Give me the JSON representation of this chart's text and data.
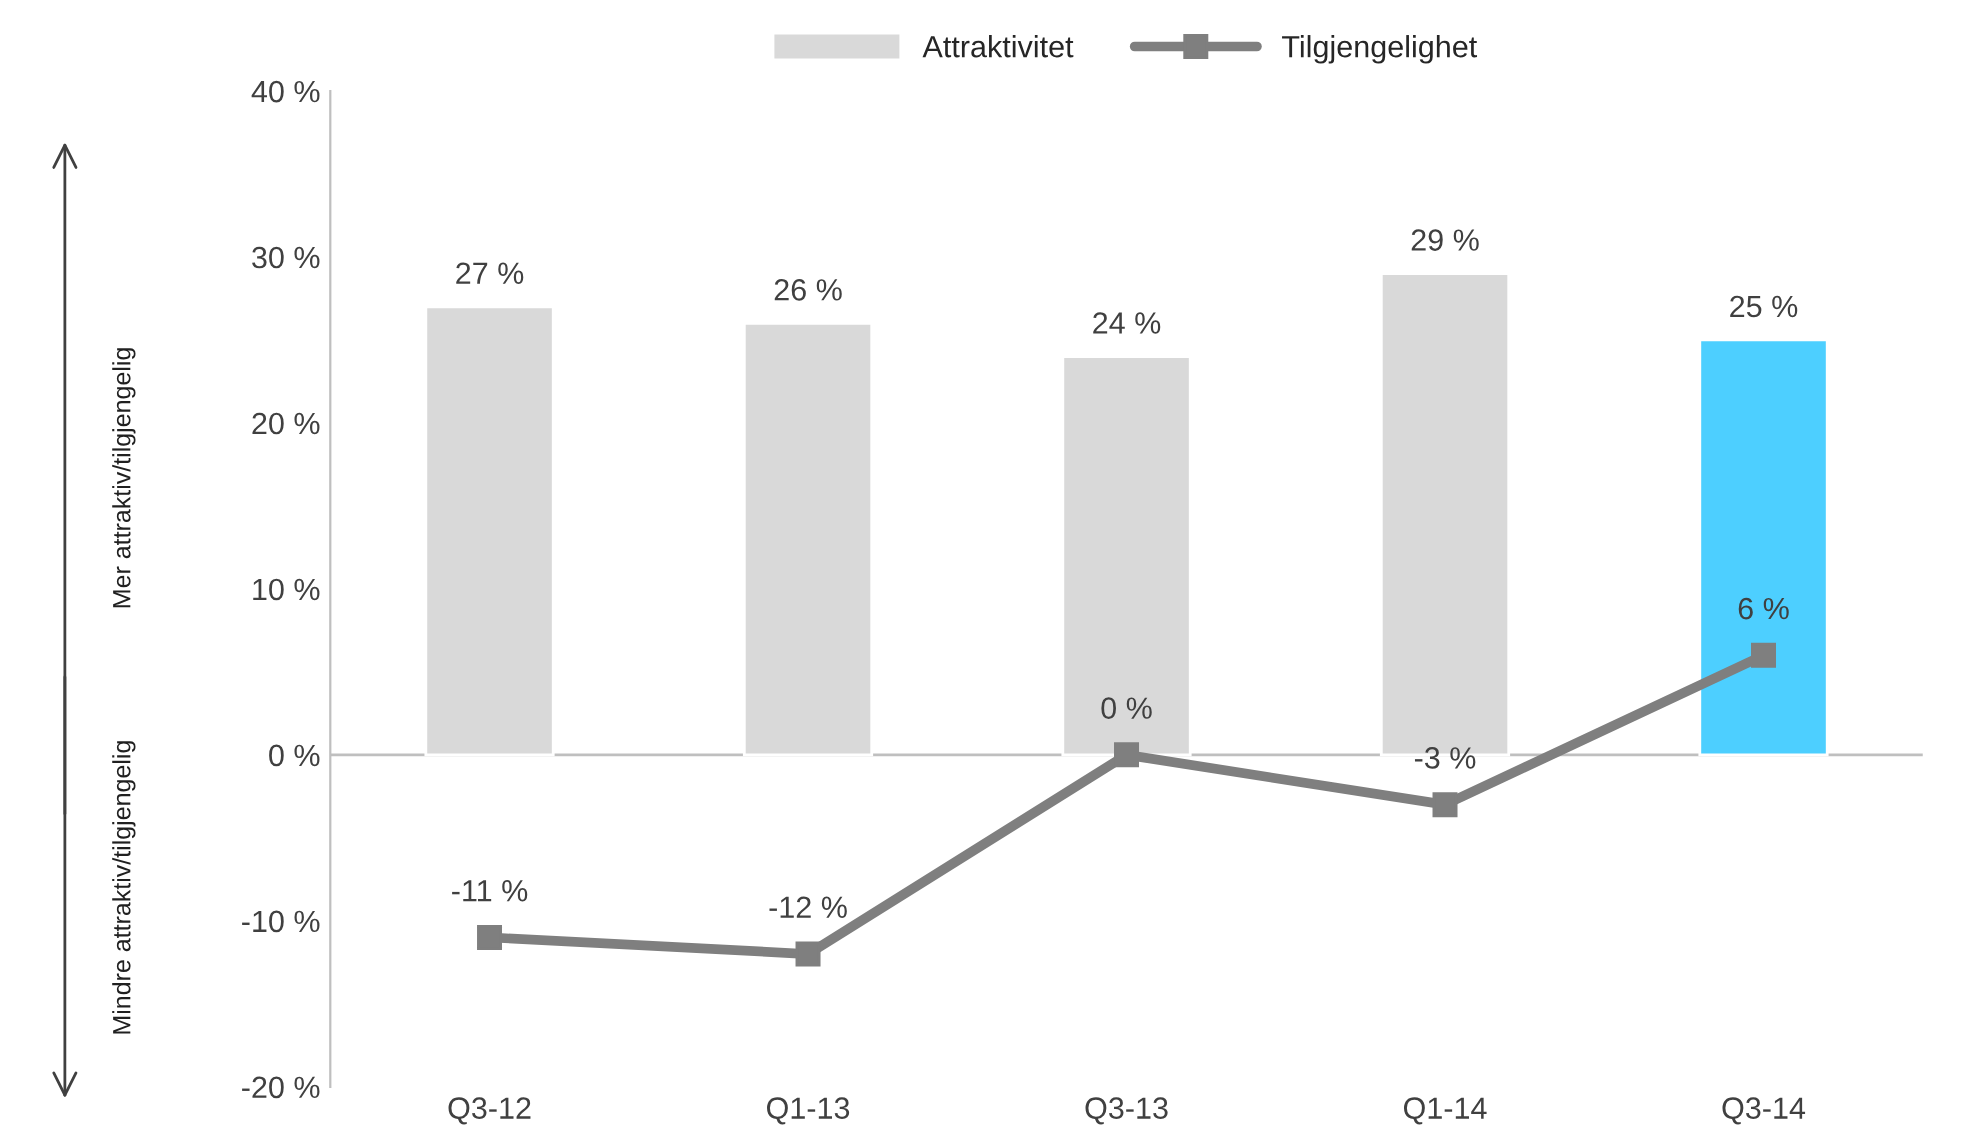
{
  "chart_data": {
    "type": "bar",
    "categories": [
      "Q3-12",
      "Q1-13",
      "Q3-13",
      "Q1-14",
      "Q3-14"
    ],
    "series": [
      {
        "name": "Attraktivitet",
        "color": "#d9d9d9",
        "colors": [
          "#d9d9d9",
          "#d9d9d9",
          "#d9d9d9",
          "#d9d9d9",
          "#4dcfff"
        ],
        "values": [
          27,
          26,
          24,
          29,
          25
        ],
        "value_labels": [
          "27 %",
          "26 %",
          "24 %",
          "29 %",
          "25 %"
        ]
      },
      {
        "name": "Tilgjengelighet",
        "type": "line",
        "color": "#7f7f7f",
        "marker": "square",
        "line_style": "solid",
        "values": [
          -11,
          -12,
          0,
          -3,
          6
        ],
        "value_labels": [
          "-11 %",
          "-12 %",
          "0 %",
          "-3 %",
          "6 %"
        ]
      }
    ],
    "ylim": [
      -20,
      40
    ],
    "yticks": [
      {
        "value": -20,
        "label": "-20 %"
      },
      {
        "value": -10,
        "label": "-10 %"
      },
      {
        "value": 0,
        "label": "0 %"
      },
      {
        "value": 10,
        "label": "10 %"
      },
      {
        "value": 20,
        "label": "20 %"
      },
      {
        "value": 30,
        "label": "30 %"
      },
      {
        "value": 40,
        "label": "40 %"
      }
    ],
    "ref_lines": [
      {
        "axis": "y",
        "value": 0,
        "color": "#bfbfbf"
      }
    ],
    "annotations": [
      "Mer attraktiv/tilgjengelig",
      "Mindre attraktiv/tilgjengelig"
    ],
    "grid": false,
    "legend": "top"
  }
}
